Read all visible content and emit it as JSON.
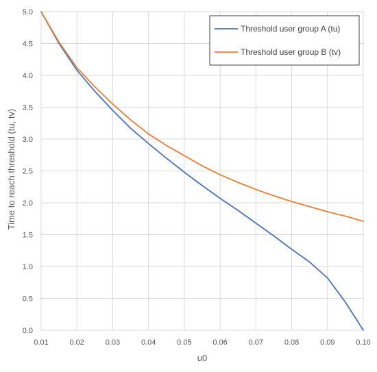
{
  "chart_data": {
    "type": "line",
    "title": "",
    "xlabel": "u0",
    "ylabel": "Time to reach threshold (tu, tv)",
    "xlim": [
      0.01,
      0.1
    ],
    "ylim": [
      0,
      5.0
    ],
    "grid": true,
    "legend_position": "top-right",
    "x_ticks": [
      "0.01",
      "0.02",
      "0.03",
      "0.04",
      "0.05",
      "0.06",
      "0.07",
      "0.08",
      "0.09",
      "0.10"
    ],
    "y_ticks": [
      "0.0",
      "0.5",
      "1.0",
      "1.5",
      "2.0",
      "2.5",
      "3.0",
      "3.5",
      "4.0",
      "4.5",
      "5.0"
    ],
    "series": [
      {
        "name": "Threshold user group A (tu)",
        "color": "#4472C4",
        "x": [
          0.01,
          0.015,
          0.02,
          0.025,
          0.03,
          0.035,
          0.04,
          0.045,
          0.05,
          0.055,
          0.06,
          0.065,
          0.07,
          0.075,
          0.08,
          0.085,
          0.09,
          0.095,
          0.1
        ],
        "y": [
          5.0,
          4.5,
          4.08,
          3.75,
          3.45,
          3.17,
          2.93,
          2.7,
          2.48,
          2.27,
          2.07,
          1.88,
          1.68,
          1.48,
          1.27,
          1.07,
          0.82,
          0.44,
          0.0
        ]
      },
      {
        "name": "Threshold user group B (tv)",
        "color": "#ED7D31",
        "x": [
          0.01,
          0.015,
          0.02,
          0.025,
          0.03,
          0.035,
          0.04,
          0.045,
          0.05,
          0.055,
          0.06,
          0.065,
          0.07,
          0.075,
          0.08,
          0.085,
          0.09,
          0.095,
          0.1
        ],
        "y": [
          5.0,
          4.52,
          4.12,
          3.82,
          3.55,
          3.3,
          3.08,
          2.9,
          2.74,
          2.58,
          2.44,
          2.32,
          2.21,
          2.11,
          2.02,
          1.94,
          1.86,
          1.79,
          1.71
        ]
      }
    ]
  }
}
